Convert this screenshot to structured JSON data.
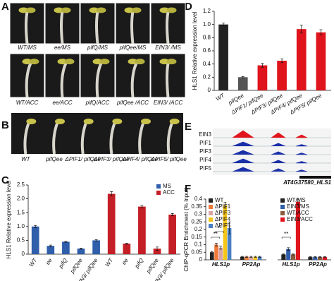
{
  "panel_letters": [
    "A",
    "B",
    "C",
    "D",
    "E",
    "F"
  ],
  "photo_panel_a": {
    "row1": [
      "WT/MS",
      "ee/MS",
      "pifQ/MS",
      "pifQee/MS",
      "EIN3/ /MS"
    ],
    "row2": [
      "WT/ACC",
      "ee/ACC",
      "pifQ/ACC",
      "pifQee /ACC",
      "EIN3/ /ACC"
    ]
  },
  "photo_panel_b": {
    "labels": [
      "WT",
      "pifQee",
      "ΔPIF1/ pifQee",
      "ΔPIF3/ pifQee",
      "ΔPIF4/ pifQee",
      "ΔPIF5/ pifQee"
    ]
  },
  "genome_tracks": {
    "tracks": [
      "EIN3",
      "PIF1",
      "PIF3",
      "PIF4",
      "PIF5"
    ],
    "gene": "AT4G37580_HLS1"
  },
  "chart_data": [
    {
      "type": "bar",
      "y_label": "HLS1 Relative expression level",
      "categories": [
        "WT",
        "ee",
        "pifQ",
        "pifQee",
        "EIN3/ pifQee",
        "WT",
        "ee",
        "pifQ",
        "pifQee",
        "EIN3/ pifQee"
      ],
      "series": [
        {
          "name": "MS",
          "color": "#2f5eaa",
          "values": [
            1.0,
            0.3,
            0.45,
            0.2,
            0.5,
            null,
            null,
            null,
            null,
            null
          ],
          "errors": [
            0.04,
            0.03,
            0.02,
            0.02,
            0.02,
            null,
            null,
            null,
            null,
            null
          ]
        },
        {
          "name": "ACC",
          "color": "#c41e26",
          "values": [
            null,
            null,
            null,
            null,
            null,
            2.18,
            0.38,
            1.72,
            0.2,
            1.43
          ],
          "errors": [
            null,
            null,
            null,
            null,
            null,
            0.08,
            0.02,
            0.05,
            0.06,
            0.04
          ]
        }
      ],
      "ylim": [
        0,
        2.5
      ],
      "yticks": [
        0,
        0.5,
        {
          "value": 1,
          "label": "1.0"
        },
        1.5,
        {
          "value": 2,
          "label": "2.0"
        },
        2.5
      ],
      "legend": "top-right"
    },
    {
      "type": "bar",
      "y_label": "HLS1 Relative expression level",
      "categories": [
        "WT",
        "pifQee",
        "ΔPIF1/ pifQee",
        "ΔPIF3/ pifQee",
        "ΔPIF4/ pifQee",
        "ΔPIF5/ pifQee"
      ],
      "values": [
        1.0,
        0.2,
        0.38,
        0.45,
        0.93,
        0.88
      ],
      "errors": [
        0.02,
        0.01,
        0.03,
        0.03,
        0.06,
        0.04
      ],
      "colors": [
        "#222222",
        "#555555",
        "#e0141c",
        "#e0141c",
        "#e0141c",
        "#e0141c"
      ],
      "ylim": [
        0,
        1.2
      ],
      "yticks": [
        0,
        0.2,
        0.4,
        0.6,
        0.8,
        {
          "value": 1,
          "label": "1.0"
        },
        1.2
      ]
    },
    {
      "type": "bar",
      "y_label": "ChIP-qPCR Enrichment (% Input)",
      "categories": [
        "HLS1p",
        "PP2Ap"
      ],
      "series": [
        {
          "name": "WT",
          "color": "#222222",
          "values": [
            0.05,
            0.02
          ],
          "errors": [
            0.005,
            0.003
          ]
        },
        {
          "name": "ΔPIF1",
          "color": "#f07a3a",
          "values": [
            0.1,
            0.02
          ],
          "errors": [
            0.01,
            0.003
          ]
        },
        {
          "name": "ΔPIF3",
          "color": "#d8a6a6",
          "values": [
            0.08,
            0.02
          ],
          "errors": [
            0.01,
            0.003
          ]
        },
        {
          "name": "ΔPIF4",
          "color": "#f5c518",
          "values": [
            0.36,
            0.02
          ],
          "errors": [
            0.02,
            0.003
          ]
        },
        {
          "name": "ΔPIF5",
          "color": "#4a7fc1",
          "values": [
            0.21,
            0.02
          ],
          "errors": [
            0.04,
            0.003
          ]
        }
      ],
      "ylim": [
        0,
        0.4
      ],
      "yticks": [
        0,
        0.05,
        0.1,
        0.15,
        0.2,
        0.25,
        0.3,
        0.35,
        0.4
      ],
      "legend": "top-left",
      "annotations": [
        "**",
        "**"
      ]
    },
    {
      "type": "bar",
      "categories": [
        "HLS1p",
        "PP2Ap"
      ],
      "series": [
        {
          "name": "WT/MS",
          "color": "#222222",
          "values": [
            0.04,
            0.02
          ],
          "errors": [
            0.003,
            0.003
          ]
        },
        {
          "name": "EIN3/MS",
          "color": "#2f5eaa",
          "values": [
            0.08,
            0.02
          ],
          "errors": [
            0.01,
            0.003
          ]
        },
        {
          "name": "WT/ACC",
          "color": "#8a5a3c",
          "values": [
            0.04,
            0.02
          ],
          "errors": [
            0.003,
            0.003
          ]
        },
        {
          "name": "EIN3/ACC",
          "color": "#e0141c",
          "values": [
            0.43,
            0.02
          ],
          "errors": [
            0.02,
            0.003
          ]
        }
      ],
      "ylim": [
        0,
        0.45
      ],
      "legend": "top-left",
      "annotations": [
        "**"
      ]
    }
  ]
}
